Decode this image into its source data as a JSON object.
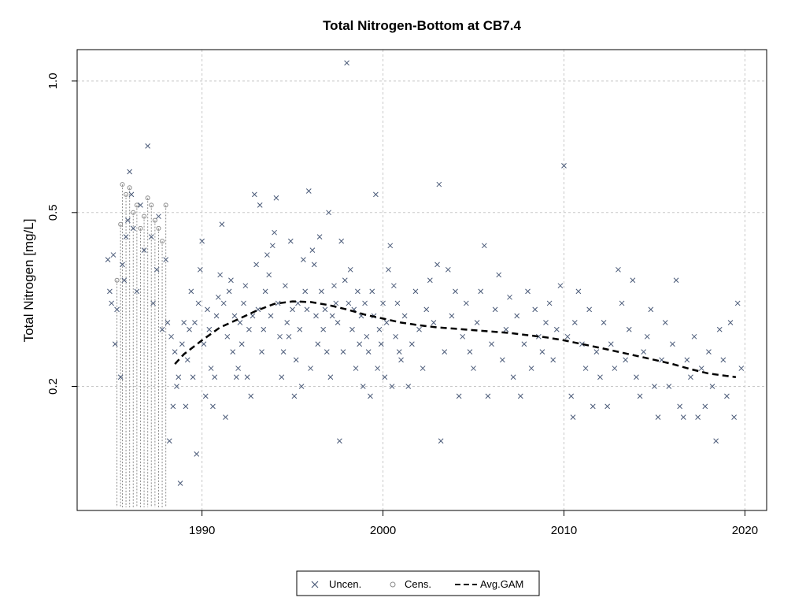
{
  "chart_data": {
    "type": "scatter",
    "title": "Total Nitrogen-Bottom at CB7.4",
    "xlabel": "",
    "ylabel": "Total Nitrogen [mg/L]",
    "y_scale": "log",
    "xlim": [
      1983.1,
      2021.2
    ],
    "ylim": [
      0.104,
      1.18
    ],
    "x_ticks": [
      1990,
      2000,
      2010,
      2020
    ],
    "x_tick_labels": [
      "1990",
      "2000",
      "2010",
      "2020"
    ],
    "y_ticks": [
      0.2,
      0.5,
      1.0
    ],
    "y_tick_labels": [
      "0.2",
      "0.5",
      "1.0"
    ],
    "grid": true,
    "legend_position": "bottom-center",
    "colors": {
      "uncensored": "#4a5a78",
      "censored": "#8a8a8a",
      "gam": "#000000",
      "grid": "#c8c8c8"
    },
    "legend": [
      {
        "label": "Uncen.",
        "symbol": "x"
      },
      {
        "label": "Cens.",
        "symbol": "o"
      },
      {
        "label": "Avg.GAM",
        "symbol": "dashed-line"
      }
    ],
    "series": [
      {
        "name": "Uncen.",
        "marker": "x",
        "points": [
          [
            1984.8,
            0.39
          ],
          [
            1984.9,
            0.33
          ],
          [
            1985.0,
            0.31
          ],
          [
            1985.1,
            0.4
          ],
          [
            1985.2,
            0.25
          ],
          [
            1985.3,
            0.3
          ],
          [
            1985.5,
            0.21
          ],
          [
            1985.6,
            0.38
          ],
          [
            1985.7,
            0.35
          ],
          [
            1985.8,
            0.44
          ],
          [
            1985.9,
            0.48
          ],
          [
            1986.0,
            0.62
          ],
          [
            1986.1,
            0.55
          ],
          [
            1986.2,
            0.46
          ],
          [
            1986.4,
            0.33
          ],
          [
            1986.6,
            0.52
          ],
          [
            1986.8,
            0.41
          ],
          [
            1987.0,
            0.71
          ],
          [
            1987.2,
            0.44
          ],
          [
            1987.3,
            0.31
          ],
          [
            1987.5,
            0.37
          ],
          [
            1987.6,
            0.49
          ],
          [
            1987.8,
            0.27
          ],
          [
            1988.0,
            0.39
          ],
          [
            1988.1,
            0.28
          ],
          [
            1988.2,
            0.15
          ],
          [
            1988.3,
            0.26
          ],
          [
            1988.4,
            0.18
          ],
          [
            1988.5,
            0.24
          ],
          [
            1988.6,
            0.2
          ],
          [
            1988.7,
            0.21
          ],
          [
            1988.8,
            0.12
          ],
          [
            1988.9,
            0.25
          ],
          [
            1989.0,
            0.28
          ],
          [
            1989.1,
            0.18
          ],
          [
            1989.2,
            0.23
          ],
          [
            1989.3,
            0.27
          ],
          [
            1989.4,
            0.33
          ],
          [
            1989.5,
            0.21
          ],
          [
            1989.6,
            0.28
          ],
          [
            1989.7,
            0.14
          ],
          [
            1989.8,
            0.31
          ],
          [
            1989.9,
            0.37
          ],
          [
            1990.0,
            0.43
          ],
          [
            1990.1,
            0.25
          ],
          [
            1990.2,
            0.19
          ],
          [
            1990.3,
            0.3
          ],
          [
            1990.4,
            0.27
          ],
          [
            1990.5,
            0.22
          ],
          [
            1990.6,
            0.18
          ],
          [
            1990.7,
            0.21
          ],
          [
            1990.8,
            0.29
          ],
          [
            1990.9,
            0.32
          ],
          [
            1991.0,
            0.36
          ],
          [
            1991.1,
            0.47
          ],
          [
            1991.2,
            0.31
          ],
          [
            1991.3,
            0.17
          ],
          [
            1991.4,
            0.26
          ],
          [
            1991.5,
            0.33
          ],
          [
            1991.6,
            0.35
          ],
          [
            1991.7,
            0.24
          ],
          [
            1991.8,
            0.29
          ],
          [
            1991.9,
            0.21
          ],
          [
            1992.0,
            0.22
          ],
          [
            1992.1,
            0.28
          ],
          [
            1992.2,
            0.25
          ],
          [
            1992.3,
            0.31
          ],
          [
            1992.4,
            0.34
          ],
          [
            1992.5,
            0.21
          ],
          [
            1992.6,
            0.27
          ],
          [
            1992.7,
            0.19
          ],
          [
            1992.8,
            0.29
          ],
          [
            1992.9,
            0.55
          ],
          [
            1993.0,
            0.38
          ],
          [
            1993.1,
            0.3
          ],
          [
            1993.2,
            0.52
          ],
          [
            1993.3,
            0.24
          ],
          [
            1993.4,
            0.27
          ],
          [
            1993.5,
            0.33
          ],
          [
            1993.6,
            0.4
          ],
          [
            1993.7,
            0.36
          ],
          [
            1993.8,
            0.29
          ],
          [
            1993.9,
            0.42
          ],
          [
            1994.0,
            0.45
          ],
          [
            1994.1,
            0.54
          ],
          [
            1994.2,
            0.31
          ],
          [
            1994.3,
            0.26
          ],
          [
            1994.4,
            0.21
          ],
          [
            1994.5,
            0.24
          ],
          [
            1994.6,
            0.34
          ],
          [
            1994.7,
            0.28
          ],
          [
            1994.8,
            0.26
          ],
          [
            1994.9,
            0.43
          ],
          [
            1995.0,
            0.3
          ],
          [
            1995.1,
            0.19
          ],
          [
            1995.2,
            0.23
          ],
          [
            1995.3,
            0.31
          ],
          [
            1995.4,
            0.27
          ],
          [
            1995.5,
            0.2
          ],
          [
            1995.6,
            0.39
          ],
          [
            1995.7,
            0.33
          ],
          [
            1995.8,
            0.3
          ],
          [
            1995.9,
            0.56
          ],
          [
            1996.0,
            0.22
          ],
          [
            1996.1,
            0.41
          ],
          [
            1996.2,
            0.38
          ],
          [
            1996.3,
            0.29
          ],
          [
            1996.4,
            0.25
          ],
          [
            1996.5,
            0.44
          ],
          [
            1996.6,
            0.33
          ],
          [
            1996.7,
            0.27
          ],
          [
            1996.8,
            0.3
          ],
          [
            1996.9,
            0.24
          ],
          [
            1997.0,
            0.5
          ],
          [
            1997.1,
            0.21
          ],
          [
            1997.2,
            0.29
          ],
          [
            1997.3,
            0.34
          ],
          [
            1997.4,
            0.31
          ],
          [
            1997.5,
            0.28
          ],
          [
            1997.6,
            0.15
          ],
          [
            1997.7,
            0.43
          ],
          [
            1997.8,
            0.24
          ],
          [
            1997.9,
            0.35
          ],
          [
            1998.0,
            1.1
          ],
          [
            1998.1,
            0.31
          ],
          [
            1998.2,
            0.37
          ],
          [
            1998.3,
            0.27
          ],
          [
            1998.4,
            0.3
          ],
          [
            1998.5,
            0.22
          ],
          [
            1998.6,
            0.33
          ],
          [
            1998.7,
            0.25
          ],
          [
            1998.8,
            0.29
          ],
          [
            1998.9,
            0.2
          ],
          [
            1999.0,
            0.31
          ],
          [
            1999.1,
            0.26
          ],
          [
            1999.2,
            0.24
          ],
          [
            1999.3,
            0.19
          ],
          [
            1999.4,
            0.33
          ],
          [
            1999.5,
            0.29
          ],
          [
            1999.6,
            0.55
          ],
          [
            1999.7,
            0.22
          ],
          [
            1999.8,
            0.27
          ],
          [
            1999.9,
            0.25
          ],
          [
            2000.0,
            0.31
          ],
          [
            2000.1,
            0.21
          ],
          [
            2000.2,
            0.28
          ],
          [
            2000.3,
            0.37
          ],
          [
            2000.4,
            0.42
          ],
          [
            2000.5,
            0.2
          ],
          [
            2000.6,
            0.34
          ],
          [
            2000.7,
            0.26
          ],
          [
            2000.8,
            0.31
          ],
          [
            2000.9,
            0.24
          ],
          [
            2001.0,
            0.23
          ],
          [
            2001.2,
            0.29
          ],
          [
            2001.4,
            0.2
          ],
          [
            2001.6,
            0.25
          ],
          [
            2001.8,
            0.33
          ],
          [
            2002.0,
            0.27
          ],
          [
            2002.2,
            0.22
          ],
          [
            2002.4,
            0.3
          ],
          [
            2002.6,
            0.35
          ],
          [
            2002.8,
            0.28
          ],
          [
            2003.0,
            0.38
          ],
          [
            2003.1,
            0.58
          ],
          [
            2003.2,
            0.15
          ],
          [
            2003.4,
            0.24
          ],
          [
            2003.6,
            0.37
          ],
          [
            2003.8,
            0.29
          ],
          [
            2004.0,
            0.33
          ],
          [
            2004.2,
            0.19
          ],
          [
            2004.4,
            0.26
          ],
          [
            2004.6,
            0.31
          ],
          [
            2004.8,
            0.24
          ],
          [
            2005.0,
            0.22
          ],
          [
            2005.2,
            0.28
          ],
          [
            2005.4,
            0.33
          ],
          [
            2005.6,
            0.42
          ],
          [
            2005.8,
            0.19
          ],
          [
            2006.0,
            0.25
          ],
          [
            2006.2,
            0.3
          ],
          [
            2006.4,
            0.36
          ],
          [
            2006.6,
            0.23
          ],
          [
            2006.8,
            0.27
          ],
          [
            2007.0,
            0.32
          ],
          [
            2007.2,
            0.21
          ],
          [
            2007.4,
            0.29
          ],
          [
            2007.6,
            0.19
          ],
          [
            2007.8,
            0.25
          ],
          [
            2008.0,
            0.33
          ],
          [
            2008.2,
            0.22
          ],
          [
            2008.4,
            0.3
          ],
          [
            2008.6,
            0.26
          ],
          [
            2008.8,
            0.24
          ],
          [
            2009.0,
            0.28
          ],
          [
            2009.2,
            0.31
          ],
          [
            2009.4,
            0.23
          ],
          [
            2009.6,
            0.27
          ],
          [
            2009.8,
            0.34
          ],
          [
            2010.0,
            0.64
          ],
          [
            2010.2,
            0.26
          ],
          [
            2010.4,
            0.19
          ],
          [
            2010.5,
            0.17
          ],
          [
            2010.6,
            0.28
          ],
          [
            2010.8,
            0.33
          ],
          [
            2011.0,
            0.25
          ],
          [
            2011.2,
            0.22
          ],
          [
            2011.4,
            0.3
          ],
          [
            2011.6,
            0.18
          ],
          [
            2011.8,
            0.24
          ],
          [
            2012.0,
            0.21
          ],
          [
            2012.2,
            0.28
          ],
          [
            2012.4,
            0.18
          ],
          [
            2012.6,
            0.25
          ],
          [
            2012.8,
            0.22
          ],
          [
            2013.0,
            0.37
          ],
          [
            2013.2,
            0.31
          ],
          [
            2013.4,
            0.23
          ],
          [
            2013.6,
            0.27
          ],
          [
            2013.8,
            0.35
          ],
          [
            2014.0,
            0.21
          ],
          [
            2014.2,
            0.19
          ],
          [
            2014.4,
            0.24
          ],
          [
            2014.6,
            0.26
          ],
          [
            2014.8,
            0.3
          ],
          [
            2015.0,
            0.2
          ],
          [
            2015.2,
            0.17
          ],
          [
            2015.4,
            0.23
          ],
          [
            2015.6,
            0.28
          ],
          [
            2015.8,
            0.2
          ],
          [
            2016.0,
            0.25
          ],
          [
            2016.2,
            0.35
          ],
          [
            2016.4,
            0.18
          ],
          [
            2016.6,
            0.17
          ],
          [
            2016.8,
            0.23
          ],
          [
            2017.0,
            0.21
          ],
          [
            2017.2,
            0.26
          ],
          [
            2017.4,
            0.17
          ],
          [
            2017.6,
            0.22
          ],
          [
            2017.8,
            0.18
          ],
          [
            2018.0,
            0.24
          ],
          [
            2018.2,
            0.2
          ],
          [
            2018.4,
            0.15
          ],
          [
            2018.6,
            0.27
          ],
          [
            2018.8,
            0.23
          ],
          [
            2019.0,
            0.19
          ],
          [
            2019.2,
            0.28
          ],
          [
            2019.4,
            0.17
          ],
          [
            2019.6,
            0.31
          ],
          [
            2019.8,
            0.22
          ]
        ]
      },
      {
        "name": "Cens.",
        "marker": "o",
        "points": [
          [
            1985.3,
            0.35
          ],
          [
            1985.5,
            0.47
          ],
          [
            1985.6,
            0.58
          ],
          [
            1985.8,
            0.55
          ],
          [
            1986.0,
            0.57
          ],
          [
            1986.2,
            0.5
          ],
          [
            1986.4,
            0.52
          ],
          [
            1986.6,
            0.46
          ],
          [
            1986.8,
            0.49
          ],
          [
            1987.0,
            0.54
          ],
          [
            1987.2,
            0.52
          ],
          [
            1987.4,
            0.48
          ],
          [
            1987.6,
            0.46
          ],
          [
            1987.8,
            0.43
          ],
          [
            1988.0,
            0.52
          ]
        ]
      },
      {
        "name": "Avg.GAM",
        "marker": "dashed-line",
        "points": [
          [
            1988.5,
            0.225
          ],
          [
            1989.0,
            0.237
          ],
          [
            1990.0,
            0.255
          ],
          [
            1991.0,
            0.273
          ],
          [
            1992.0,
            0.285
          ],
          [
            1993.0,
            0.298
          ],
          [
            1994.0,
            0.309
          ],
          [
            1995.0,
            0.313
          ],
          [
            1996.0,
            0.312
          ],
          [
            1997.0,
            0.307
          ],
          [
            1998.0,
            0.3
          ],
          [
            1999.0,
            0.292
          ],
          [
            2000.0,
            0.286
          ],
          [
            2001.0,
            0.28
          ],
          [
            2002.0,
            0.276
          ],
          [
            2003.0,
            0.273
          ],
          [
            2004.0,
            0.271
          ],
          [
            2005.0,
            0.269
          ],
          [
            2006.0,
            0.267
          ],
          [
            2007.0,
            0.265
          ],
          [
            2008.0,
            0.262
          ],
          [
            2009.0,
            0.259
          ],
          [
            2010.0,
            0.255
          ],
          [
            2011.0,
            0.25
          ],
          [
            2012.0,
            0.245
          ],
          [
            2013.0,
            0.24
          ],
          [
            2014.0,
            0.235
          ],
          [
            2015.0,
            0.23
          ],
          [
            2016.0,
            0.225
          ],
          [
            2017.0,
            0.219
          ],
          [
            2018.0,
            0.214
          ],
          [
            2019.5,
            0.21
          ]
        ]
      }
    ]
  }
}
